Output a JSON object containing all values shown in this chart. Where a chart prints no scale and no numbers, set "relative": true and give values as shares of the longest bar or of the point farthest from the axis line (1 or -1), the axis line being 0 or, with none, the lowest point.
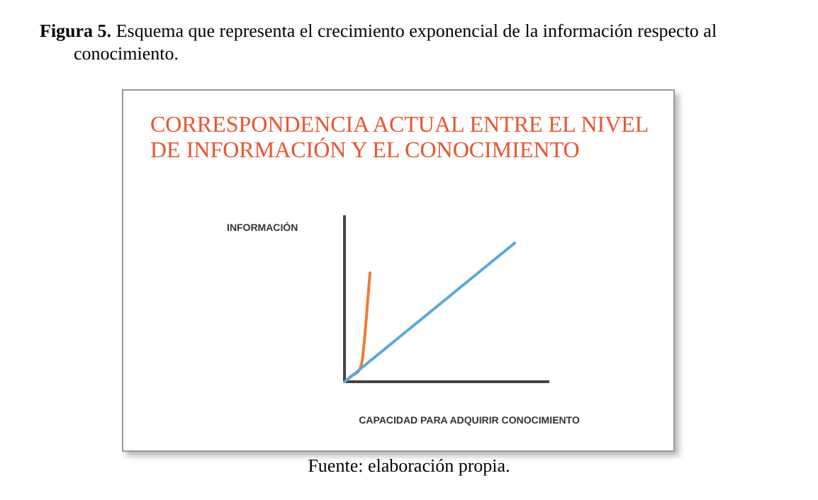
{
  "chart_data": {
    "type": "line",
    "title": "CORRESPONDENCIA ACTUAL ENTRE EL NIVEL DE INFORMACIÓN Y EL CONOCIMIENTO",
    "xlabel": "CAPACIDAD PARA ADQUIRIR CONOCIMIENTO",
    "ylabel": "INFORMACIÓN",
    "relative": true,
    "marker": "none",
    "line_style": "solid",
    "annotations": [
      "Figura 5. Esquema que representa el crecimiento exponencial de la información respecto al conocimiento.",
      "Fuente: elaboración propia."
    ],
    "categories": [
      null,
      null,
      null,
      null,
      null,
      null,
      null,
      null,
      null,
      null,
      null,
      null,
      null,
      null,
      null,
      null,
      null,
      null,
      null,
      null,
      null,
      null,
      null,
      null,
      null
    ],
    "series": [
      {
        "color": "#5aa9dc",
        "values": [
          0,
          null,
          null,
          null,
          null,
          null,
          null,
          null,
          null,
          null,
          null,
          null,
          null,
          null,
          null,
          null,
          null,
          null,
          null,
          null,
          1,
          null,
          null,
          null,
          null
        ]
      },
      {
        "color": "#ed7d31",
        "values": [
          0,
          0.05,
          0.13,
          0.785,
          null,
          null,
          null,
          null,
          null,
          null,
          null,
          null,
          null,
          null,
          null,
          null,
          null,
          null,
          null,
          null,
          null,
          null,
          null,
          null,
          null
        ]
      }
    ]
  }
}
